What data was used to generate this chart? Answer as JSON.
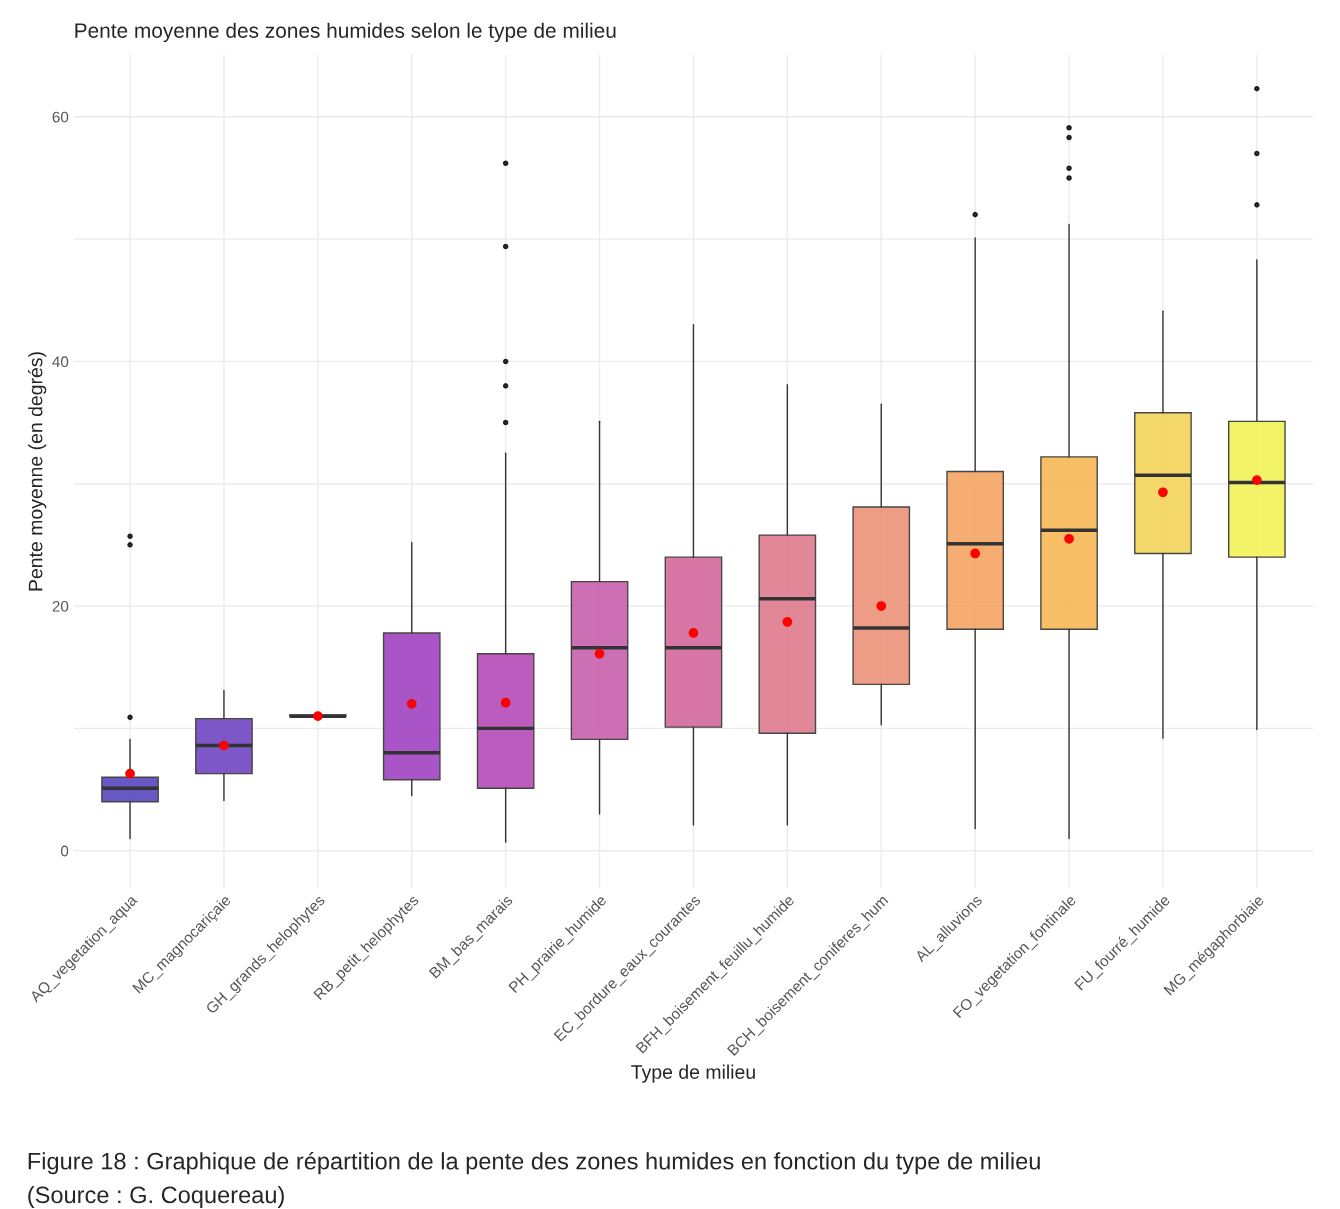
{
  "chart_data": {
    "type": "box",
    "title": "Pente moyenne des zones humides selon le type de milieu",
    "xlabel": "Type de milieu",
    "ylabel": "Pente moyenne (en degrés)",
    "categories": [
      "AQ_vegetation_aqua",
      "MC_magnocariçaie",
      "GH_grands_helophytes",
      "RB_petit_helophytes",
      "BM_bas_marais",
      "PH_prairie_humide",
      "EC_bordure_eaux_courantes",
      "BFH_boisement_feuillu_humide",
      "BCH_boisement_coniferes_hum",
      "AL_alluvions",
      "FO_vegetation_fontinale",
      "FU_fourré_humide",
      "MG_mégaphorbiaie"
    ],
    "colors": [
      "#5846c0",
      "#7145c4",
      "#8a3fc6",
      "#a043c2",
      "#b54bb8",
      "#c860ad",
      "#d4699d",
      "#df7b8d",
      "#ec9378",
      "#f4a563",
      "#f7b856",
      "#f5d45a",
      "#f1f257"
    ],
    "boxes": [
      {
        "low": 1.0,
        "q1": 4.0,
        "median": 5.1,
        "q3": 6.0,
        "high": 9.1,
        "mean": 6.3,
        "outliers": [
          10.9,
          25.0,
          25.7
        ]
      },
      {
        "low": 4.1,
        "q1": 6.3,
        "median": 8.6,
        "q3": 10.8,
        "high": 13.1,
        "mean": 8.6
      },
      {
        "low": 11.0,
        "q1": 11.0,
        "median": 11.0,
        "q3": 11.1,
        "high": 11.1,
        "mean": 11.0
      },
      {
        "low": 4.5,
        "q1": 5.8,
        "median": 8.0,
        "q3": 17.8,
        "high": 25.2,
        "mean": 12.0
      },
      {
        "low": 0.7,
        "q1": 5.1,
        "median": 10.0,
        "q3": 16.1,
        "high": 32.5,
        "mean": 12.1,
        "outliers": [
          35,
          38,
          40,
          49.4,
          56.2
        ]
      },
      {
        "low": 3.0,
        "q1": 9.1,
        "median": 16.6,
        "q3": 22.0,
        "high": 35.1,
        "mean": 16.1
      },
      {
        "low": 2.1,
        "q1": 10.1,
        "median": 16.6,
        "q3": 24.0,
        "high": 43.0,
        "mean": 17.8
      },
      {
        "low": 2.1,
        "q1": 9.6,
        "median": 20.6,
        "q3": 25.8,
        "high": 38.1,
        "mean": 18.7
      },
      {
        "low": 10.3,
        "q1": 13.6,
        "median": 18.2,
        "q3": 28.1,
        "high": 36.5,
        "mean": 20.0
      },
      {
        "low": 1.8,
        "q1": 18.1,
        "median": 25.1,
        "q3": 31.0,
        "high": 50.1,
        "mean": 24.3,
        "outliers": [
          52.0
        ]
      },
      {
        "low": 1.0,
        "q1": 18.1,
        "median": 26.2,
        "q3": 32.2,
        "high": 51.2,
        "mean": 25.5,
        "outliers": [
          55.0,
          55.8,
          58.3,
          59.1
        ]
      },
      {
        "low": 9.2,
        "q1": 24.3,
        "median": 30.7,
        "q3": 35.8,
        "high": 44.1,
        "mean": 29.3
      },
      {
        "low": 9.9,
        "q1": 24.0,
        "median": 30.1,
        "q3": 35.1,
        "high": 48.3,
        "mean": 30.3,
        "outliers": [
          52.8,
          57.0,
          62.3
        ]
      }
    ],
    "ylim": [
      -3.1,
      65.1
    ],
    "yticks": [
      0,
      {
        "value": 10,
        "label": null
      },
      20,
      {
        "value": 30,
        "label": null
      },
      40,
      {
        "value": 50,
        "label": null
      },
      60
    ],
    "grid": true,
    "annotations": [
      "Figure 18 : Graphique de répartition de la pente des zones humides en fonction du type de milieu",
      "(Source : G. Coquereau)"
    ]
  }
}
